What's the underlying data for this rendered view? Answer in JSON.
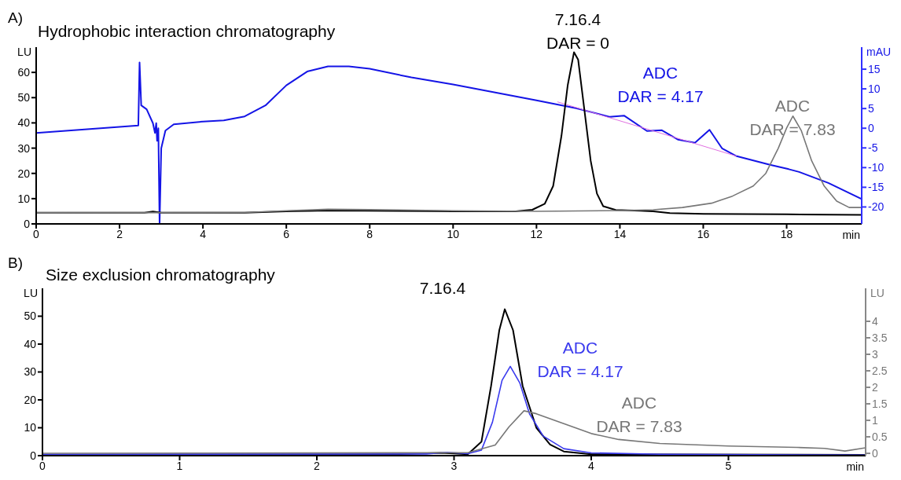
{
  "chart_data": [
    {
      "type": "line",
      "title": "Hydrophobic interaction chromatography",
      "annotations": [
        "A)"
      ],
      "xlabel": "min",
      "ylabel": "LU",
      "y2label": "mAU",
      "xlim": [
        0,
        19.8
      ],
      "xticks": [
        0,
        2,
        4,
        6,
        8,
        10,
        12,
        14,
        16,
        18
      ],
      "ylim": [
        0,
        70
      ],
      "yticks": [
        0,
        10,
        20,
        30,
        40,
        50,
        60
      ],
      "y2lim": [
        -24.3,
        20.6
      ],
      "y2ticks": [
        -20,
        -15,
        -10,
        -5,
        0,
        5,
        10,
        15
      ],
      "legend": false,
      "marker": "none",
      "series": [
        {
          "name": "ADC\nDAR = 4.17",
          "color": "#1414e6",
          "axis": "y2",
          "x": [
            0,
            2.45,
            2.48,
            2.52,
            2.65,
            2.8,
            2.85,
            2.88,
            2.9,
            2.93,
            2.96,
            3.0,
            3.1,
            3.3,
            4,
            4.5,
            5,
            5.5,
            6,
            6.5,
            7,
            7.5,
            8,
            9,
            10,
            12,
            12.95,
            13.75,
            14.1,
            14.65,
            15.0,
            15.4,
            15.8,
            16.15,
            16.45,
            16.8,
            17.6,
            18.05,
            18.3,
            19.0,
            19.8
          ],
          "values": [
            -1.2,
            0.7,
            16.7,
            5.8,
            4.8,
            1.3,
            -1.2,
            1.3,
            -3.2,
            0,
            -24.3,
            -5.1,
            -0.6,
            1.0,
            1.7,
            2.0,
            3.0,
            5.8,
            10.9,
            14.4,
            15.7,
            15.7,
            15.1,
            12.9,
            11.1,
            7.1,
            5.1,
            2.9,
            3.2,
            -0.7,
            -0.5,
            -2.9,
            -3.7,
            -0.4,
            -5.1,
            -7.1,
            -9.3,
            -10.4,
            -11.1,
            -13.9,
            -18.0
          ]
        },
        {
          "color": "#e070e0",
          "axis": "y2",
          "x": [
            12.5,
            16.8
          ],
          "values": [
            6.7,
            -7.1
          ]
        },
        {
          "name": "7.16.4\nDAR = 0",
          "color": "#000000",
          "x": [
            0,
            2.6,
            2.8,
            3.0,
            5,
            6,
            7,
            10,
            11.5,
            11.9,
            12.2,
            12.4,
            12.6,
            12.75,
            12.9,
            13.0,
            13.15,
            13.3,
            13.45,
            13.6,
            13.9,
            14.5,
            14.8,
            15.2,
            16,
            18,
            19.8
          ],
          "values": [
            4.4,
            4.4,
            4.9,
            4.4,
            4.4,
            5.0,
            5.3,
            5.0,
            5.0,
            5.6,
            8,
            15,
            35,
            55,
            68,
            65,
            45,
            25,
            12,
            7,
            5.5,
            5.2,
            5.0,
            4.3,
            4.0,
            3.8,
            3.6
          ]
        },
        {
          "name": "ADC\nDAR = 7.83",
          "color": "#777777",
          "x": [
            0,
            5,
            6,
            7,
            8,
            10,
            12,
            14,
            14.8,
            15.5,
            16.2,
            16.7,
            17.2,
            17.5,
            17.8,
            18.0,
            18.15,
            18.35,
            18.6,
            18.9,
            19.2,
            19.5,
            19.8
          ],
          "values": [
            4.4,
            4.5,
            5.2,
            5.8,
            5.7,
            5.2,
            5.0,
            5.3,
            5.6,
            6.5,
            8.2,
            11,
            15,
            20,
            30,
            38,
            42.7,
            37,
            25,
            15,
            9,
            6.5,
            6.5
          ]
        }
      ]
    },
    {
      "type": "line",
      "title": "Size exclusion chromatography",
      "annotations": [
        "B)"
      ],
      "xlabel": "min",
      "ylabel": "LU",
      "y2label": "LU",
      "xlim": [
        0,
        6
      ],
      "xticks": [
        0,
        1,
        2,
        3,
        4,
        5
      ],
      "ylim": [
        0,
        60
      ],
      "yticks": [
        0,
        10,
        20,
        30,
        40,
        50
      ],
      "y2lim": [
        -0.07,
        5
      ],
      "y2ticks": [
        0,
        0.5,
        1,
        1.5,
        2,
        2.5,
        3,
        3.5,
        4
      ],
      "legend": false,
      "marker": "none",
      "series": [
        {
          "name": "7.16.4",
          "color": "#000000",
          "x": [
            0,
            2.5,
            2.9,
            3.0,
            3.1,
            3.2,
            3.27,
            3.33,
            3.37,
            3.43,
            3.5,
            3.6,
            3.7,
            3.8,
            4.0,
            6
          ],
          "values": [
            0.3,
            0.4,
            1,
            0.8,
            0.5,
            5,
            25,
            45,
            52.5,
            45,
            25,
            10,
            4,
            1.5,
            0.5,
            0.3
          ]
        },
        {
          "name": "ADC\nDAR = 4.17",
          "color": "#3a3aee",
          "x": [
            0,
            2.8,
            2.95,
            3.1,
            3.2,
            3.28,
            3.35,
            3.41,
            3.48,
            3.55,
            3.65,
            3.8,
            4.0,
            4.5,
            6
          ],
          "values": [
            0.5,
            0.6,
            1.2,
            0.7,
            2,
            12,
            27,
            32,
            26,
            15,
            7,
            2.5,
            1,
            0.5,
            0.2
          ]
        },
        {
          "name": "ADC\nDAR = 7.83",
          "color": "#777777",
          "axis": "y2",
          "x": [
            0,
            3.1,
            3.3,
            3.4,
            3.51,
            3.6,
            3.8,
            4.0,
            4.2,
            4.5,
            5.0,
            5.5,
            5.7,
            5.85,
            6.0
          ],
          "values": [
            0,
            0.02,
            0.25,
            0.8,
            1.29,
            1.2,
            0.9,
            0.6,
            0.42,
            0.3,
            0.22,
            0.18,
            0.15,
            0.07,
            0.17
          ]
        }
      ]
    }
  ]
}
